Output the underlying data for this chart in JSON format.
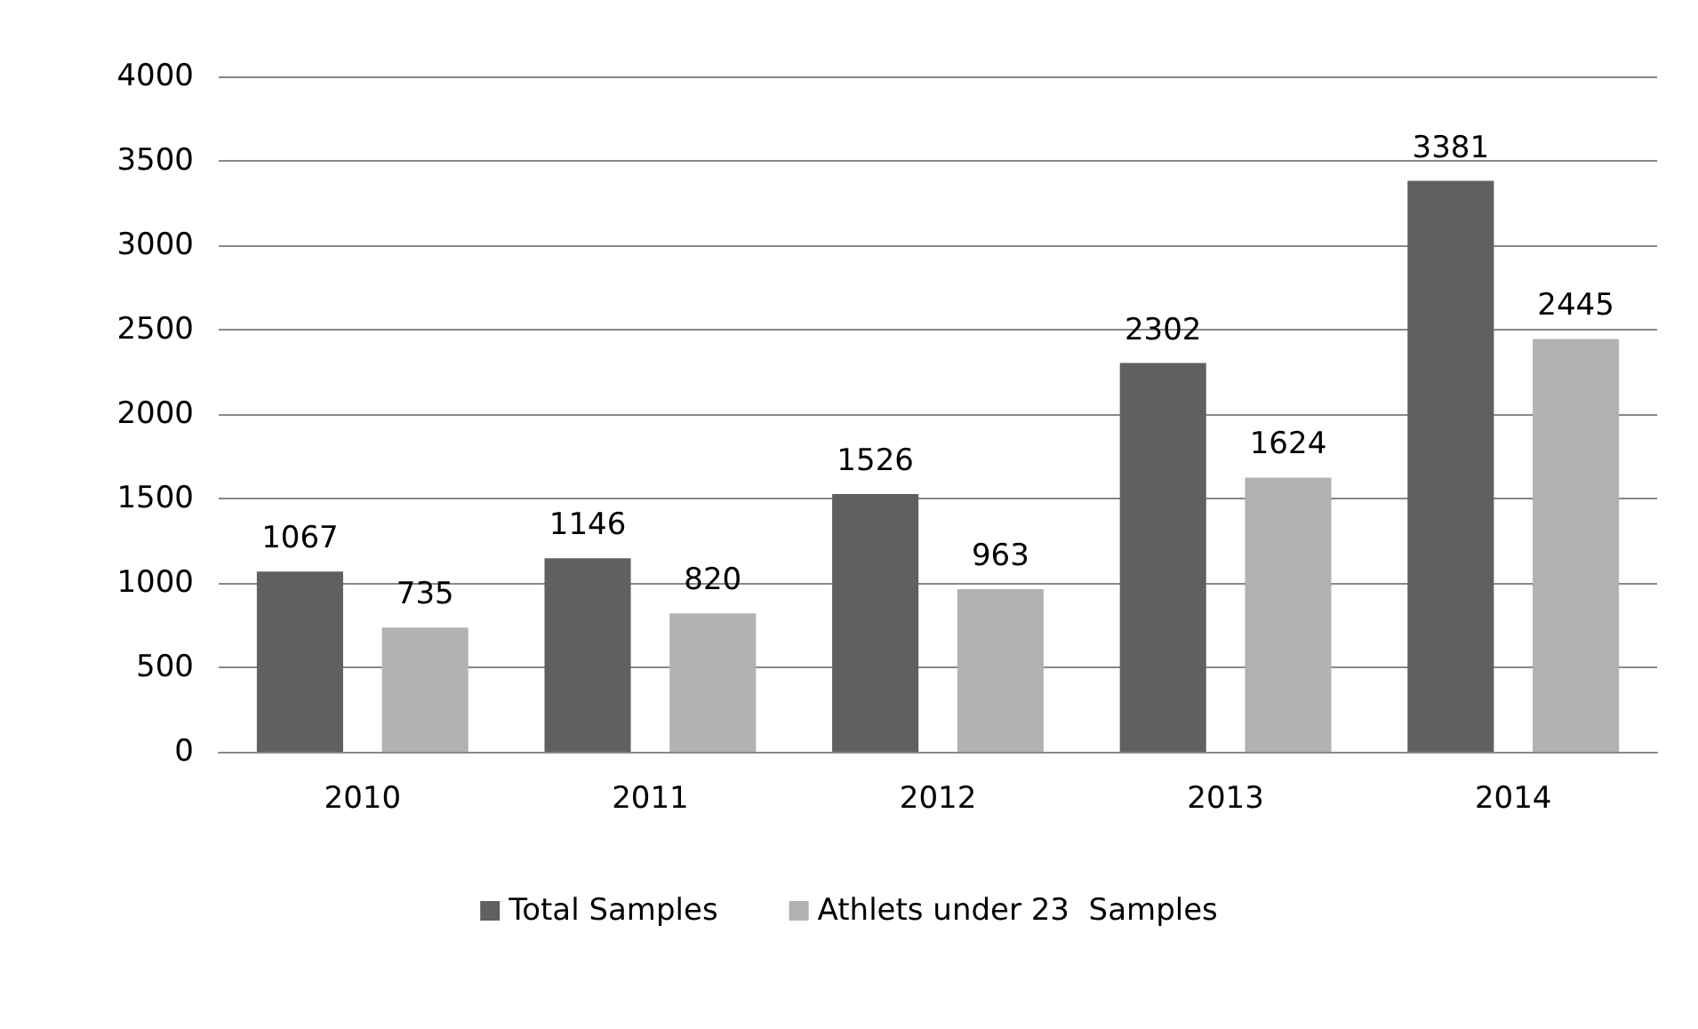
{
  "chart_data": {
    "type": "bar",
    "categories": [
      "2010",
      "2011",
      "2012",
      "2013",
      "2014"
    ],
    "series": [
      {
        "name": "Total Samples",
        "color": "#606060",
        "values": [
          1067,
          1146,
          1526,
          2302,
          3381
        ]
      },
      {
        "name": "Athlets under 23  Samples",
        "color": "#b2b2b2",
        "values": [
          735,
          820,
          963,
          1624,
          2445
        ]
      }
    ],
    "ylim": [
      0,
      4000
    ],
    "yticks": [
      0,
      500,
      1000,
      1500,
      2000,
      2500,
      3000,
      3500,
      4000
    ],
    "grid": "y",
    "legend": "bottom",
    "data_labels": true
  }
}
